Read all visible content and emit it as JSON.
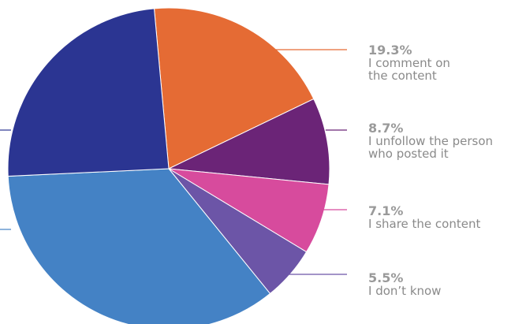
{
  "chart_data": {
    "type": "pie",
    "title": "",
    "slices": [
      {
        "label": "I comment on the content",
        "label_lines": [
          "I comment on",
          "the content"
        ],
        "percent_text": "19.3%",
        "value": 19.3,
        "color": "#E56B34",
        "labeled": true
      },
      {
        "label": "I unfollow the person who posted it",
        "label_lines": [
          "I unfollow the person",
          "who posted it"
        ],
        "percent_text": "8.7%",
        "value": 8.7,
        "color": "#6B2477",
        "labeled": true
      },
      {
        "label": "I share the content",
        "label_lines": [
          "I share the content"
        ],
        "percent_text": "7.1%",
        "value": 7.1,
        "color": "#D74B9D",
        "labeled": true
      },
      {
        "label": "I don’t know",
        "label_lines": [
          "I don’t know"
        ],
        "percent_text": "5.5%",
        "value": 5.5,
        "color": "#6C55A7",
        "labeled": true
      },
      {
        "label": "",
        "label_lines": [],
        "percent_text": "",
        "value": 35.1,
        "color": "#4482C5",
        "labeled": false
      },
      {
        "label": "",
        "label_lines": [],
        "percent_text": "",
        "value": 24.3,
        "color": "#2B3592",
        "labeled": false
      }
    ],
    "legend": "callouts-right"
  }
}
